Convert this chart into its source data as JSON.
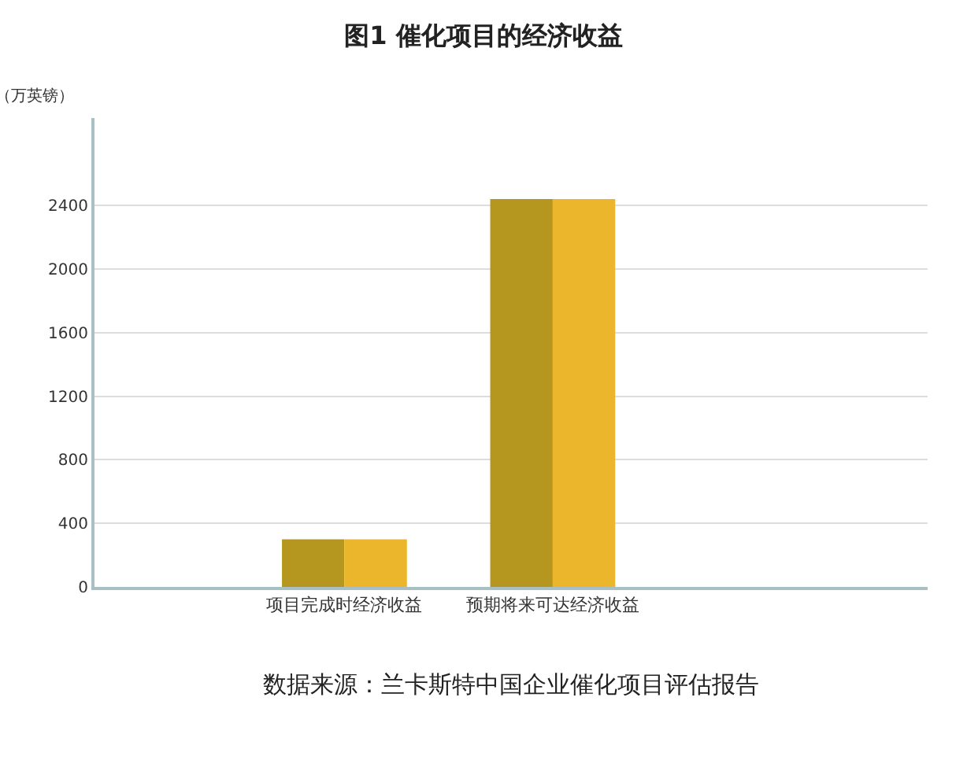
{
  "chart_data": {
    "type": "bar",
    "title": "图1 催化项目的经济收益",
    "ylabel": "（万英镑）",
    "categories": [
      "项目完成时经济收益",
      "预期将来可达经济收益"
    ],
    "series": [
      {
        "color": "#b5961e",
        "values": [
          300,
          2440
        ]
      },
      {
        "color": "#ebb62b",
        "values": [
          300,
          2440
        ]
      }
    ],
    "ylim": [
      0,
      2950
    ],
    "yticks": [
      0,
      400,
      800,
      1200,
      1600,
      2000,
      2400
    ],
    "grid": "y",
    "annotations": [
      "数据来源：兰卡斯特中国企业催化项目评估报告"
    ]
  }
}
